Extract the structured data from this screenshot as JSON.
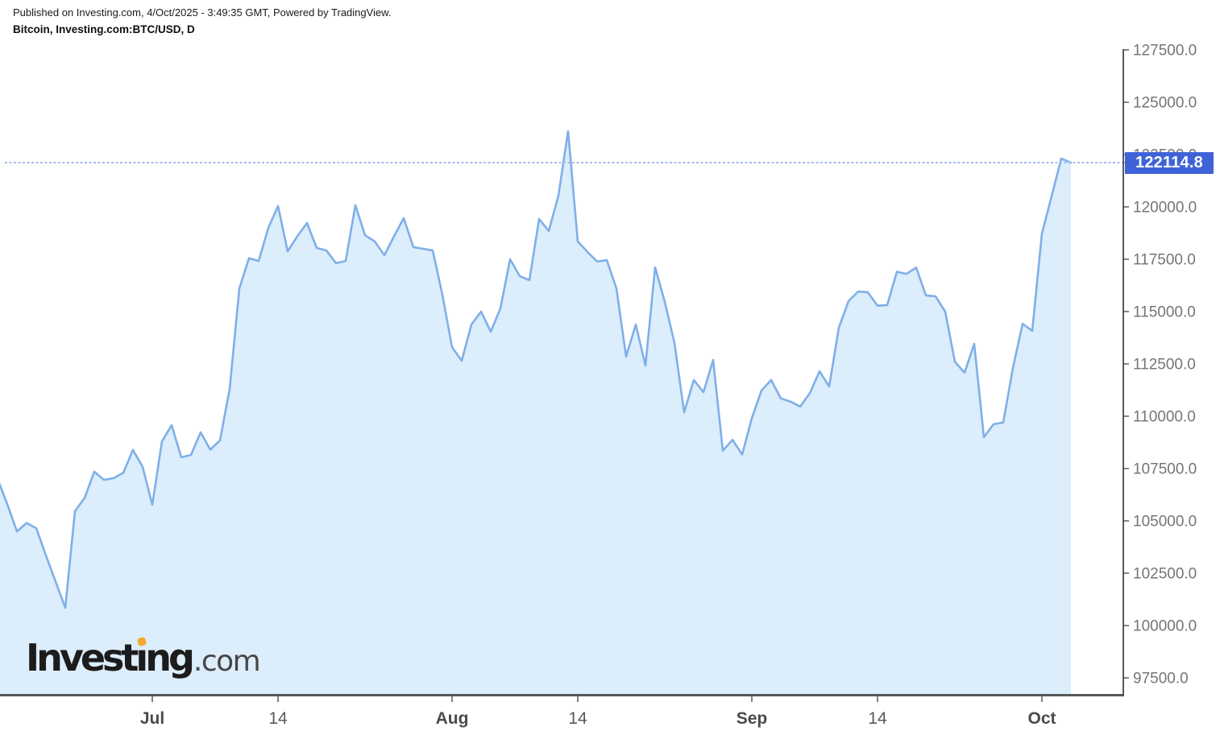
{
  "header": {
    "published": "Published on Investing.com, 4/Oct/2025 - 3:49:35 GMT, Powered by TradingView.",
    "symbol": "Bitcoin, Investing.com:BTC/USD, D"
  },
  "logo": {
    "brand": "Investing",
    "suffix": ".com"
  },
  "colors": {
    "line": "#7FAFE8",
    "fill": "#DCEDFB",
    "dotted_line": "#A9BBE7",
    "price_label_bg": "#3E62D8",
    "price_label_text": "#FFFFFF",
    "y_tick_text": "#757575",
    "x_tick_text": "#4A4A4A",
    "axis_line": "#55585A",
    "logo_accent": "#F7A72D"
  },
  "chart_data": {
    "type": "area",
    "symbol": "BTC/USD",
    "title": "Bitcoin, Investing.com:BTC/USD, D",
    "timeframe": "D",
    "frequency": "daily",
    "start_date": "2025-06-15",
    "end_date": "2025-10-04",
    "last_price": 122114.8,
    "last_price_label": "122114.8",
    "grid": "none",
    "legend": "none",
    "y_axis": {
      "position": "right",
      "tick_format": "0.1f",
      "range_approx": [
        96600,
        127800
      ],
      "ticks": [
        127500,
        125000,
        122500,
        120000,
        117500,
        115000,
        112500,
        110000,
        107500,
        105000,
        102500,
        100000,
        97500
      ]
    },
    "x_axis": {
      "ticks": [
        {
          "label": "Jul",
          "index": 16
        },
        {
          "label": "14",
          "index": 29
        },
        {
          "label": "Aug",
          "index": 47
        },
        {
          "label": "14",
          "index": 60
        },
        {
          "label": "Sep",
          "index": 78
        },
        {
          "label": "14",
          "index": 91
        },
        {
          "label": "Oct",
          "index": 108
        }
      ]
    },
    "series": [
      {
        "name": "BTC/USD",
        "values": [
          107000,
          105800,
          104500,
          104900,
          104650,
          103350,
          102100,
          100850,
          105460,
          106100,
          107350,
          106960,
          107040,
          107300,
          108390,
          107580,
          105770,
          108800,
          109570,
          108040,
          108150,
          109230,
          108400,
          108850,
          111300,
          116100,
          117550,
          117420,
          119000,
          120040,
          117880,
          118600,
          119230,
          118040,
          117920,
          117310,
          117420,
          120080,
          118650,
          118350,
          117690,
          118600,
          119460,
          118080,
          118000,
          117920,
          115800,
          113300,
          112650,
          114380,
          115000,
          114040,
          115150,
          117500,
          116690,
          116500,
          119420,
          118850,
          120540,
          123620,
          118350,
          117850,
          117390,
          117460,
          116100,
          112850,
          114380,
          112420,
          117115,
          115460,
          113500,
          110190,
          111730,
          111150,
          112690,
          108350,
          108870,
          108170,
          109900,
          111230,
          111730,
          110850,
          110700,
          110460,
          111100,
          112150,
          111420,
          114230,
          115500,
          115960,
          115920,
          115280,
          115310,
          116900,
          116800,
          117100,
          115770,
          115730,
          115000,
          112600,
          112080,
          113460,
          109000,
          109620,
          109700,
          112300,
          114420,
          114080,
          118730,
          120500,
          122310,
          122114.8
        ]
      }
    ]
  }
}
